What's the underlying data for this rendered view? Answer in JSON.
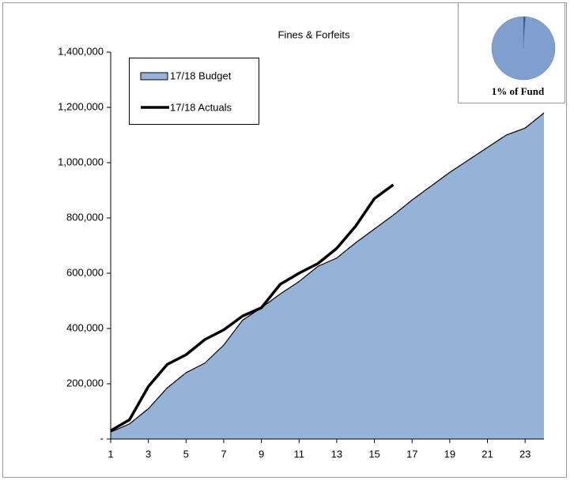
{
  "chart_data": [
    {
      "type": "area_line",
      "title": "Fines & Forfeits",
      "x": [
        1,
        2,
        3,
        4,
        5,
        6,
        7,
        8,
        9,
        10,
        11,
        12,
        13,
        14,
        15,
        16,
        17,
        18,
        19,
        20,
        21,
        22,
        23,
        24
      ],
      "xlim": [
        1,
        24
      ],
      "xticks": [
        1,
        3,
        5,
        7,
        9,
        11,
        13,
        15,
        17,
        19,
        21,
        23
      ],
      "ylim": [
        0,
        1400000
      ],
      "yticks": [
        {
          "value": 0,
          "label": "-"
        },
        {
          "value": 200000,
          "label": "200,000"
        },
        {
          "value": 400000,
          "label": "400,000"
        },
        {
          "value": 600000,
          "label": "600,000"
        },
        {
          "value": 800000,
          "label": "800,000"
        },
        {
          "value": 1000000,
          "label": "1,000,000"
        },
        {
          "value": 1200000,
          "label": "1,200,000"
        },
        {
          "value": 1400000,
          "label": "1,400,000"
        }
      ],
      "series": [
        {
          "name": "17/18 Budget",
          "color": "#95b3d7",
          "values": [
            25000,
            55000,
            110000,
            185000,
            240000,
            275000,
            340000,
            430000,
            475000,
            525000,
            570000,
            625000,
            655000,
            710000,
            760000,
            810000,
            865000,
            915000,
            965000,
            1010000,
            1055000,
            1100000,
            1125000,
            1180000
          ]
        },
        {
          "name": "17/18 Actuals",
          "color": "#000000",
          "values": [
            30000,
            70000,
            190000,
            270000,
            305000,
            360000,
            395000,
            445000,
            475000,
            560000,
            600000,
            635000,
            690000,
            770000,
            870000,
            920000,
            null,
            null,
            null,
            null,
            null,
            null,
            null,
            null
          ]
        }
      ]
    },
    {
      "type": "pie",
      "values": [
        1,
        99
      ],
      "colors": [
        "#2f4f7f",
        "#7f9fcf"
      ],
      "annotation": "1% of Fund"
    }
  ]
}
